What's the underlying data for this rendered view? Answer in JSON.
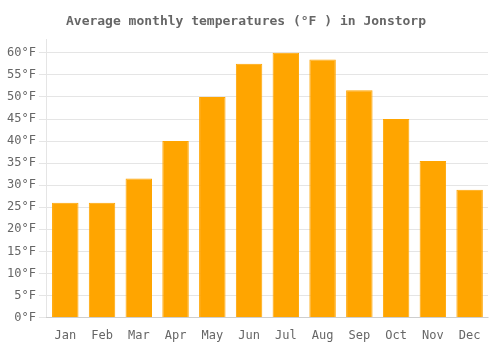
{
  "chart_data": {
    "type": "bar",
    "title": "Average monthly temperatures (°F ) in Jonstorp",
    "categories": [
      "Jan",
      "Feb",
      "Mar",
      "Apr",
      "May",
      "Jun",
      "Jul",
      "Aug",
      "Sep",
      "Oct",
      "Nov",
      "Dec"
    ],
    "values": [
      26,
      26,
      31.5,
      40,
      50,
      57.5,
      60,
      58.5,
      51.5,
      45,
      35.5,
      29
    ],
    "color": "#FFA500",
    "ylim": [
      0,
      63
    ],
    "yticks": [
      {
        "value": 0,
        "label": "0°F"
      },
      {
        "value": 5,
        "label": "5°F"
      },
      {
        "value": 10,
        "label": "10°F"
      },
      {
        "value": 15,
        "label": "15°F"
      },
      {
        "value": 20,
        "label": "20°F"
      },
      {
        "value": 25,
        "label": "25°F"
      },
      {
        "value": 30,
        "label": "30°F"
      },
      {
        "value": 35,
        "label": "35°F"
      },
      {
        "value": 40,
        "label": "40°F"
      },
      {
        "value": 45,
        "label": "45°F"
      },
      {
        "value": 50,
        "label": "50°F"
      },
      {
        "value": 55,
        "label": "55°F"
      },
      {
        "value": 60,
        "label": "60°F"
      }
    ],
    "grid": true
  }
}
